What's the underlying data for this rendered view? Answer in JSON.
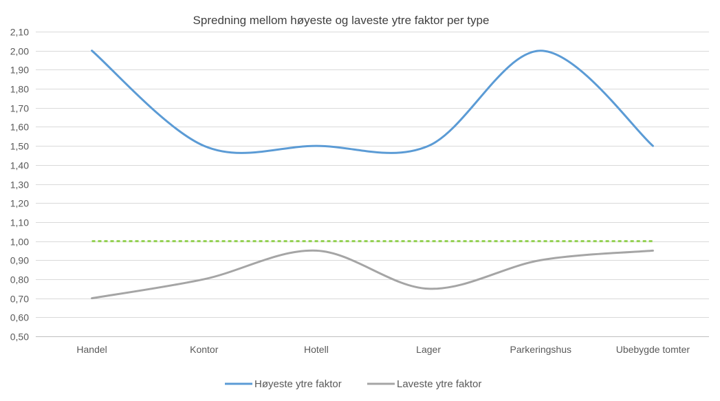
{
  "chart_data": {
    "type": "line",
    "title": "Spredning mellom høyeste og laveste ytre faktor per type",
    "xlabel": "",
    "ylabel": "",
    "categories": [
      "Handel",
      "Kontor",
      "Hotell",
      "Lager",
      "Parkeringshus",
      "Ubebygde tomter"
    ],
    "ylim": [
      0.5,
      2.1
    ],
    "yticks": [
      "0,50",
      "0,60",
      "0,70",
      "0,80",
      "0,90",
      "1,00",
      "1,10",
      "1,20",
      "1,30",
      "1,40",
      "1,50",
      "1,60",
      "1,70",
      "1,80",
      "1,90",
      "2,00",
      "2,10"
    ],
    "grid": true,
    "smooth": true,
    "legend_position": "bottom",
    "series": [
      {
        "name": "Høyeste ytre faktor",
        "values": [
          2.0,
          1.5,
          1.5,
          1.5,
          2.0,
          1.5
        ],
        "color": "#5B9BD5",
        "in_legend": true
      },
      {
        "name": "Laveste ytre faktor",
        "values": [
          0.7,
          0.8,
          0.95,
          0.75,
          0.9,
          0.95
        ],
        "color": "#A5A5A5",
        "in_legend": true
      },
      {
        "name": "",
        "values": [
          1.0,
          1.0,
          1.0,
          1.0,
          1.0,
          1.0
        ],
        "color": "#92D050",
        "dashed": true,
        "in_legend": false
      }
    ]
  }
}
